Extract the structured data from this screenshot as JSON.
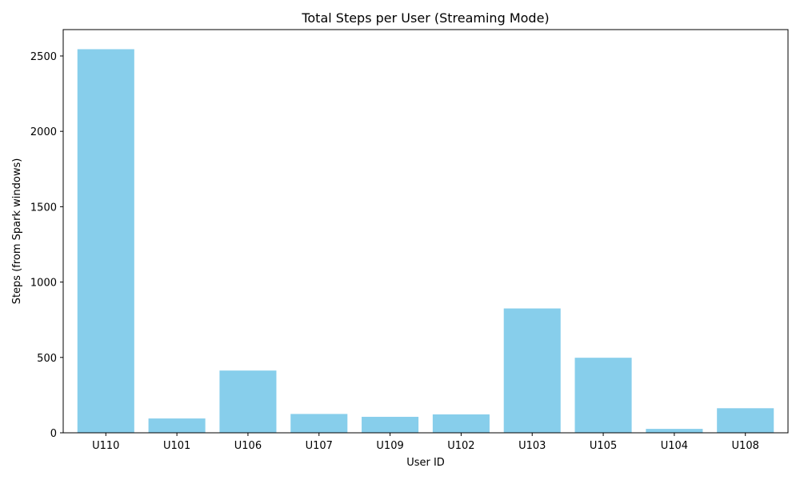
{
  "chart_data": {
    "type": "bar",
    "title": "Total Steps per User (Streaming Mode)",
    "xlabel": "User ID",
    "ylabel": "Steps (from Spark windows)",
    "categories": [
      "U110",
      "U101",
      "U106",
      "U107",
      "U109",
      "U102",
      "U103",
      "U105",
      "U104",
      "U108"
    ],
    "values": [
      2545,
      95,
      413,
      125,
      106,
      122,
      825,
      498,
      26,
      163
    ],
    "ylim": [
      0,
      2675
    ],
    "yticks": [
      0,
      500,
      1000,
      1500,
      2000,
      2500
    ],
    "bar_color": "#87CEEB",
    "grid": false,
    "legend": "none"
  }
}
